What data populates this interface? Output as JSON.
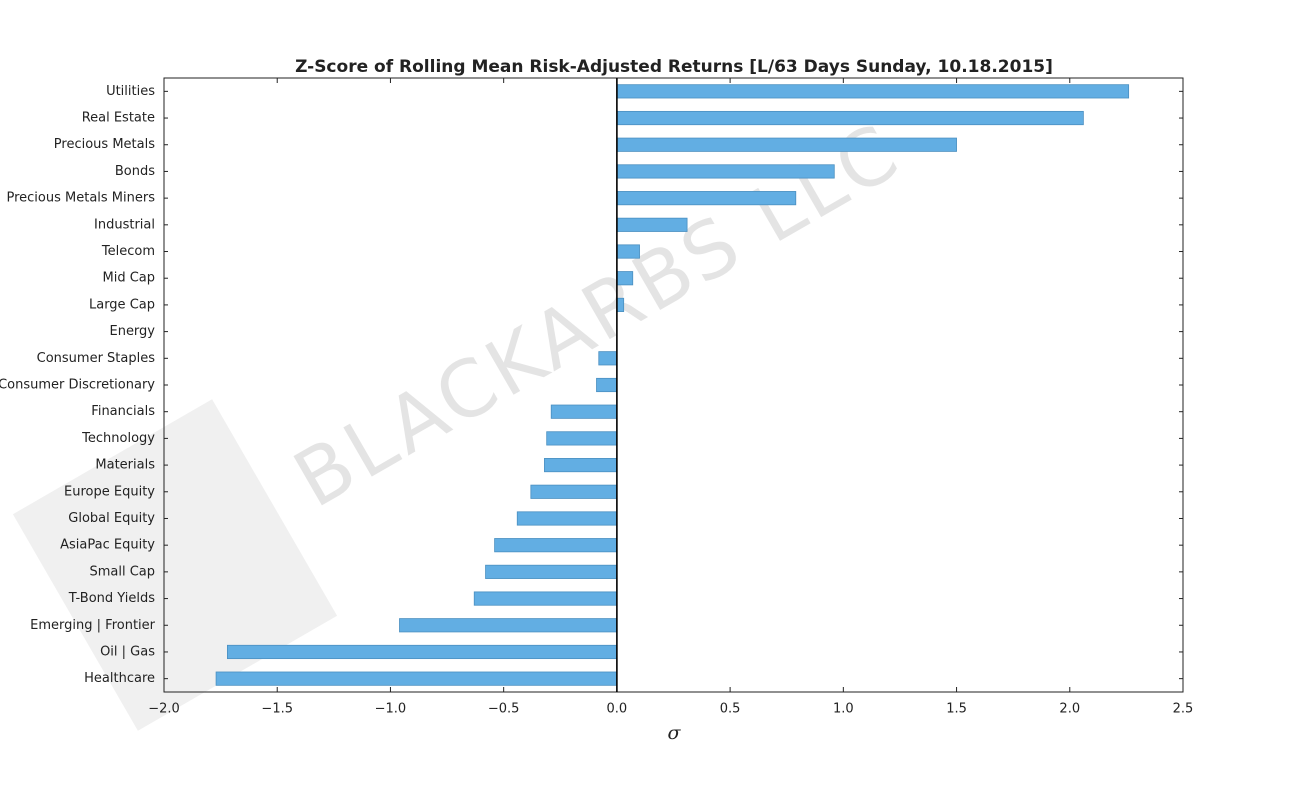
{
  "chart_data": {
    "type": "bar",
    "orientation": "horizontal",
    "title": "Z-Score of Rolling Mean Risk-Adjusted Returns [L/63 Days Sunday, 10.18.2015]",
    "x_label": "σ",
    "watermark": "BLACKARBS LLC",
    "categories": [
      "Utilities",
      "Real Estate",
      "Precious Metals",
      "Bonds",
      "Precious Metals Miners",
      "Industrial",
      "Telecom",
      "Mid Cap",
      "Large Cap",
      "Energy",
      "Consumer Staples",
      "Consumer Discretionary",
      "Financials",
      "Technology",
      "Materials",
      "Europe Equity",
      "Global Equity",
      "AsiaPac Equity",
      "Small Cap",
      "T-Bond Yields",
      "Emerging | Frontier",
      "Oil | Gas",
      "Healthcare"
    ],
    "values": [
      2.26,
      2.06,
      1.5,
      0.96,
      0.79,
      0.31,
      0.1,
      0.07,
      0.03,
      0,
      -0.08,
      -0.09,
      -0.29,
      -0.31,
      -0.32,
      -0.38,
      -0.44,
      -0.54,
      -0.58,
      -0.63,
      -0.96,
      -1.72,
      -1.77
    ],
    "color": "#62aee3",
    "xlim": [
      -2.0,
      2.5
    ],
    "xticks": [
      {
        "value": -2.0,
        "label": "−2.0"
      },
      {
        "value": -1.5,
        "label": "−1.5"
      },
      {
        "value": -1.0,
        "label": "−1.0"
      },
      {
        "value": -0.5,
        "label": "−0.5"
      },
      {
        "value": 0,
        "label": "0.0"
      },
      0.5,
      {
        "value": 1.0,
        "label": "1.0"
      },
      1.5,
      {
        "value": 2.0,
        "label": "2.0"
      },
      2.5
    ],
    "grid": false
  }
}
